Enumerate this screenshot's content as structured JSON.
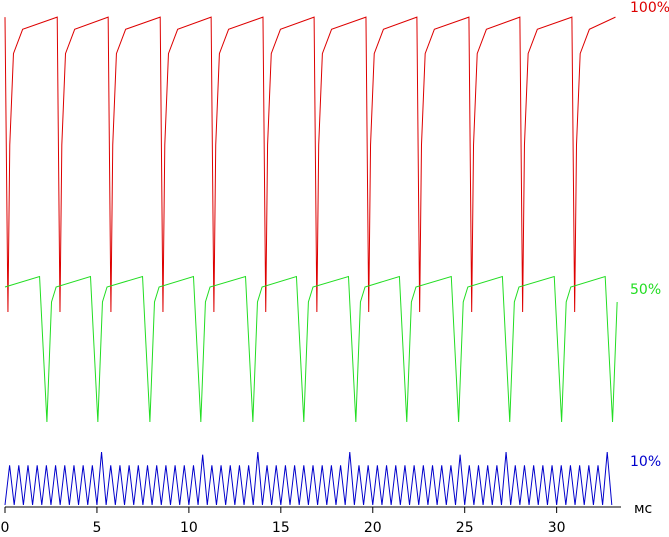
{
  "chart_data": [
    {
      "type": "line",
      "xlim": [
        0,
        33.5
      ],
      "ylim": [
        0,
        1
      ],
      "series": [
        {
          "name": "100%",
          "color": "#dd0000",
          "x": [
            0,
            0.16,
            0.26,
            0.46,
            0.96,
            2.84,
            2.99,
            3.09,
            3.29,
            3.79,
            5.61,
            5.76,
            5.86,
            6.06,
            6.56,
            8.44,
            8.59,
            8.69,
            8.89,
            9.39,
            11.21,
            11.36,
            11.46,
            11.66,
            12.16,
            14.03,
            14.18,
            14.28,
            14.48,
            14.98,
            16.81,
            16.96,
            17.06,
            17.26,
            17.76,
            19.63,
            19.78,
            19.88,
            20.08,
            20.58,
            22.4,
            22.55,
            22.65,
            22.85,
            23.35,
            25.23,
            25.38,
            25.48,
            25.68,
            26.18,
            28,
            28.15,
            28.25,
            28.45,
            28.95,
            30.83,
            30.98,
            31.08,
            31.28,
            31.78,
            33.2
          ],
          "values": [
            0.97,
            0,
            0.55,
            0.85,
            0.93,
            0.97,
            0,
            0.55,
            0.85,
            0.93,
            0.97,
            0,
            0.55,
            0.85,
            0.93,
            0.97,
            0,
            0.55,
            0.85,
            0.93,
            0.97,
            0,
            0.55,
            0.85,
            0.93,
            0.97,
            0,
            0.55,
            0.85,
            0.93,
            0.97,
            0,
            0.55,
            0.85,
            0.93,
            0.97,
            0,
            0.55,
            0.85,
            0.93,
            0.97,
            0,
            0.55,
            0.85,
            0.93,
            0.97,
            0,
            0.55,
            0.85,
            0.93,
            0.97,
            0,
            0.55,
            0.85,
            0.93,
            0.97,
            0,
            0.55,
            0.85,
            0.93,
            0.97
          ]
        }
      ]
    },
    {
      "type": "line",
      "xlim": [
        0,
        33.5
      ],
      "ylim": [
        0,
        1
      ],
      "series": [
        {
          "name": "50%",
          "color": "#22dd22",
          "x": [
            0,
            1.88,
            2.03,
            2.28,
            2.53,
            2.78,
            4.65,
            4.8,
            5.05,
            5.3,
            5.55,
            7.48,
            7.63,
            7.88,
            8.13,
            8.38,
            10.25,
            10.4,
            10.65,
            10.9,
            11.15,
            13.08,
            13.23,
            13.48,
            13.73,
            13.98,
            15.85,
            16,
            16.25,
            16.5,
            16.75,
            18.68,
            18.83,
            19.08,
            19.33,
            19.58,
            21.45,
            21.6,
            21.85,
            22.1,
            22.35,
            24.27,
            24.42,
            24.67,
            24.92,
            25.17,
            27.05,
            27.2,
            27.45,
            27.7,
            27.95,
            29.87,
            30.02,
            30.27,
            30.52,
            30.77,
            32.64,
            32.79,
            33.04,
            33.29
          ],
          "values": [
            0.9,
            0.97,
            0.6,
            0,
            0.8,
            0.9,
            0.97,
            0.6,
            0,
            0.8,
            0.9,
            0.97,
            0.6,
            0,
            0.8,
            0.9,
            0.97,
            0.6,
            0,
            0.8,
            0.9,
            0.97,
            0.6,
            0,
            0.8,
            0.9,
            0.97,
            0.6,
            0,
            0.8,
            0.9,
            0.97,
            0.6,
            0,
            0.8,
            0.9,
            0.97,
            0.6,
            0,
            0.8,
            0.9,
            0.97,
            0.6,
            0,
            0.8,
            0.9,
            0.97,
            0.6,
            0,
            0.8,
            0.9,
            0.97,
            0.6,
            0,
            0.8,
            0.9,
            0.97,
            0.6,
            0,
            0.8
          ]
        }
      ]
    },
    {
      "type": "line",
      "xlim": [
        0,
        33.5
      ],
      "ylim": [
        0,
        1
      ],
      "xticks": [
        0,
        5,
        10,
        15,
        20,
        25,
        30
      ],
      "xlabel": "мс",
      "series": [
        {
          "name": "10%",
          "color": "#0000cc",
          "x": [
            0,
            0.25,
            0.5,
            0.75,
            1,
            1.25,
            1.5,
            1.75,
            2,
            2.25,
            2.5,
            2.75,
            3,
            3.25,
            3.5,
            3.75,
            4,
            4.25,
            4.5,
            4.75,
            5,
            5.25,
            5.5,
            5.75,
            6,
            6.25,
            6.5,
            6.75,
            7,
            7.25,
            7.5,
            7.75,
            8,
            8.25,
            8.5,
            8.75,
            9,
            9.25,
            9.5,
            9.75,
            10,
            10.25,
            10.5,
            10.75,
            11,
            11.25,
            11.5,
            11.75,
            12,
            12.25,
            12.5,
            12.75,
            13,
            13.25,
            13.5,
            13.75,
            14,
            14.25,
            14.5,
            14.75,
            15,
            15.25,
            15.5,
            15.75,
            16,
            16.25,
            16.5,
            16.75,
            17,
            17.25,
            17.5,
            17.75,
            18,
            18.25,
            18.5,
            18.75,
            19,
            19.25,
            19.5,
            19.75,
            20,
            20.25,
            20.5,
            20.75,
            21,
            21.25,
            21.5,
            21.75,
            22,
            22.25,
            22.5,
            22.75,
            23,
            23.25,
            23.5,
            23.75,
            24,
            24.25,
            24.5,
            24.75,
            25,
            25.25,
            25.5,
            25.75,
            26,
            26.25,
            26.5,
            26.75,
            27,
            27.25,
            27.5,
            27.75,
            28,
            28.25,
            28.5,
            28.75,
            29,
            29.25,
            29.5,
            29.75,
            30,
            30.25,
            30.5,
            30.75,
            31,
            31.25,
            31.5,
            31.75,
            32,
            32.25,
            32.5,
            32.75,
            33
          ],
          "values": [
            0,
            0.75,
            0,
            0.75,
            0,
            0.75,
            0,
            0.75,
            0,
            0.75,
            0,
            0.75,
            0,
            0.75,
            0,
            0.75,
            0,
            0.75,
            0,
            0.75,
            0,
            1,
            0,
            0.75,
            0,
            0.75,
            0,
            0.75,
            0,
            0.75,
            0,
            0.75,
            0,
            0.75,
            0,
            0.75,
            0,
            0.75,
            0,
            0.75,
            0,
            0.75,
            0,
            0.95,
            0,
            0.75,
            0,
            0.75,
            0,
            0.75,
            0,
            0.75,
            0,
            0.75,
            0,
            1,
            0,
            0.75,
            0,
            0.75,
            0,
            0.75,
            0,
            0.75,
            0,
            0.75,
            0,
            0.75,
            0,
            0.75,
            0,
            0.75,
            0,
            0.75,
            0,
            1,
            0,
            0.75,
            0,
            0.75,
            0,
            0.75,
            0,
            0.75,
            0,
            0.75,
            0,
            0.75,
            0,
            0.75,
            0,
            0.75,
            0,
            0.75,
            0,
            0.75,
            0,
            0.75,
            0,
            0.95,
            0,
            0.75,
            0,
            0.75,
            0,
            0.75,
            0,
            0.75,
            0,
            1,
            0,
            0.75,
            0,
            0.75,
            0,
            0.75,
            0,
            0.75,
            0,
            0.75,
            0,
            0.75,
            0,
            0.75,
            0,
            0.75,
            0,
            0.75,
            0,
            0.75,
            0,
            1,
            0
          ]
        }
      ]
    }
  ]
}
